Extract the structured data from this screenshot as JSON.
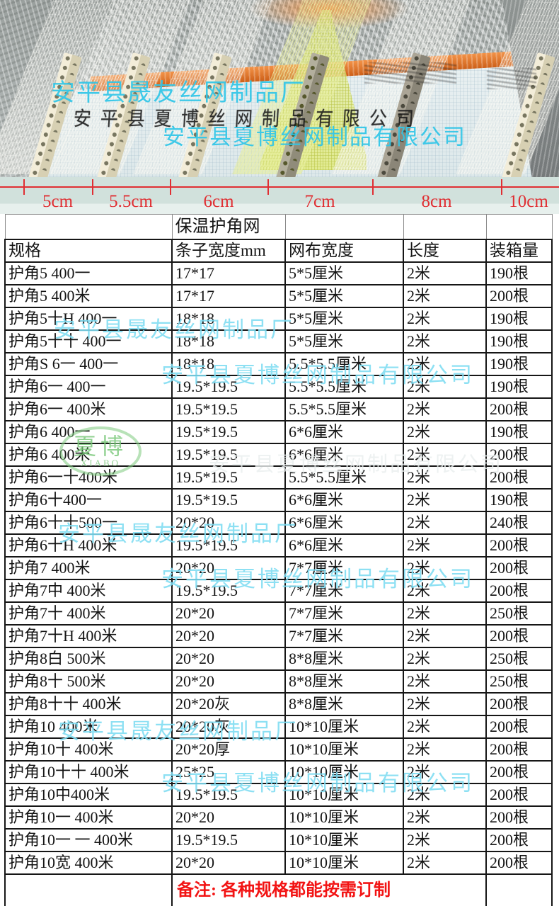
{
  "watermarks": {
    "shengyou": "安平县晟友丝网制品厂",
    "xiabo_full": "安平县夏博丝网制品有限公司",
    "logo_cn": "夏博",
    "logo_en": "XIABO"
  },
  "photo": {
    "floor_stamp_text": "安平县夏博丝网制品有限公司"
  },
  "ruler": {
    "unit_labels": [
      "5cm",
      "5.5cm",
      "6cm",
      "7cm",
      "8cm",
      "10cm"
    ],
    "line_color": "#e02f33"
  },
  "table": {
    "title": "保温护角网",
    "headers": [
      "规格",
      "条子宽度mm",
      "网布宽度",
      "长度",
      "装箱量"
    ],
    "rows": [
      [
        "护角5 400一",
        "17*17",
        "5*5厘米",
        "2米",
        "190根"
      ],
      [
        "护角5 400米",
        "17*17",
        "5*5厘米",
        "2米",
        "200根"
      ],
      [
        "护角5十H 400一",
        "18*18",
        "5*5厘米",
        "2米",
        "190根"
      ],
      [
        "护角5十十 400一",
        "18*18",
        "5*5厘米",
        "2米",
        "190根"
      ],
      [
        "护角S 6一 400一",
        "18*18",
        "5.5*5.5厘米",
        "2米",
        "190根"
      ],
      [
        "护角6一 400一",
        "19.5*19.5",
        "5.5*5.5厘米",
        "2米",
        "190根"
      ],
      [
        "护角6一 400米",
        "19.5*19.5",
        "5.5*5.5厘米",
        "2米",
        "200根"
      ],
      [
        "护角6 400一",
        "19.5*19.5",
        "6*6厘米",
        "2米",
        "190根"
      ],
      [
        "护角6 400米",
        "19.5*19.5",
        "6*6厘米",
        "2米",
        "200根"
      ],
      [
        "护角6一十400米",
        "19.5*19.5",
        "5.5*5.5厘米",
        "2米",
        "200根"
      ],
      [
        "护角6十400一",
        "19.5*19.5",
        "6*6厘米",
        "2米",
        "190根"
      ],
      [
        "护角6十十500一",
        "20*20",
        "6*6厘米",
        "2米",
        "240根"
      ],
      [
        "护角6十H 400米",
        "19.5*19.5",
        "6*6厘米",
        "2米",
        "200根"
      ],
      [
        "护角7 400米",
        "20*20",
        "7*7厘米",
        "2米",
        "200根"
      ],
      [
        "护角7中 400米",
        "19.5*19.5",
        "7*7厘米",
        "2米",
        "200根"
      ],
      [
        "护角7十 400米",
        "20*20",
        "7*7厘米",
        "2米",
        "250根"
      ],
      [
        "护角7十H 400米",
        "20*20",
        "7*7厘米",
        "2米",
        "200根"
      ],
      [
        "护角8白 500米",
        "20*20",
        "8*8厘米",
        "2米",
        "250根"
      ],
      [
        "护角8十 500米",
        "20*20",
        "8*8厘米",
        "2米",
        "250根"
      ],
      [
        "护角8十十 400米",
        "20*20灰",
        "8*8厘米",
        "2米",
        "200根"
      ],
      [
        "护角10 400米",
        "20*20灰",
        "10*10厘米",
        "2米",
        "200根"
      ],
      [
        "护角10十 400米",
        "20*20厚",
        "10*10厘米",
        "2米",
        "200根"
      ],
      [
        "护角10十十 400米",
        "25*25",
        "10*10厘米",
        "2米",
        "200根"
      ],
      [
        "护角10中400米",
        "19.5*19.5",
        "10*10厘米",
        "2米",
        "200根"
      ],
      [
        "护角10一 400米",
        "20*20",
        "10*10厘米",
        "2米",
        "200根"
      ],
      [
        "护角10一 一 400米",
        "19.5*19.5",
        "10*10厘米",
        "2米",
        "200根"
      ],
      [
        "护角10宽 400米",
        "20*20",
        "10*10厘米",
        "2米",
        "200根"
      ]
    ],
    "note": "备注: 各种规格都能按需订制"
  },
  "colors": {
    "watermark_cyan": "#7edcf2",
    "photo_watermark_cyan": "#30c6e8",
    "logo_green": "#76c676",
    "note_red": "#f21414",
    "ruler_red": "#e02f33"
  }
}
